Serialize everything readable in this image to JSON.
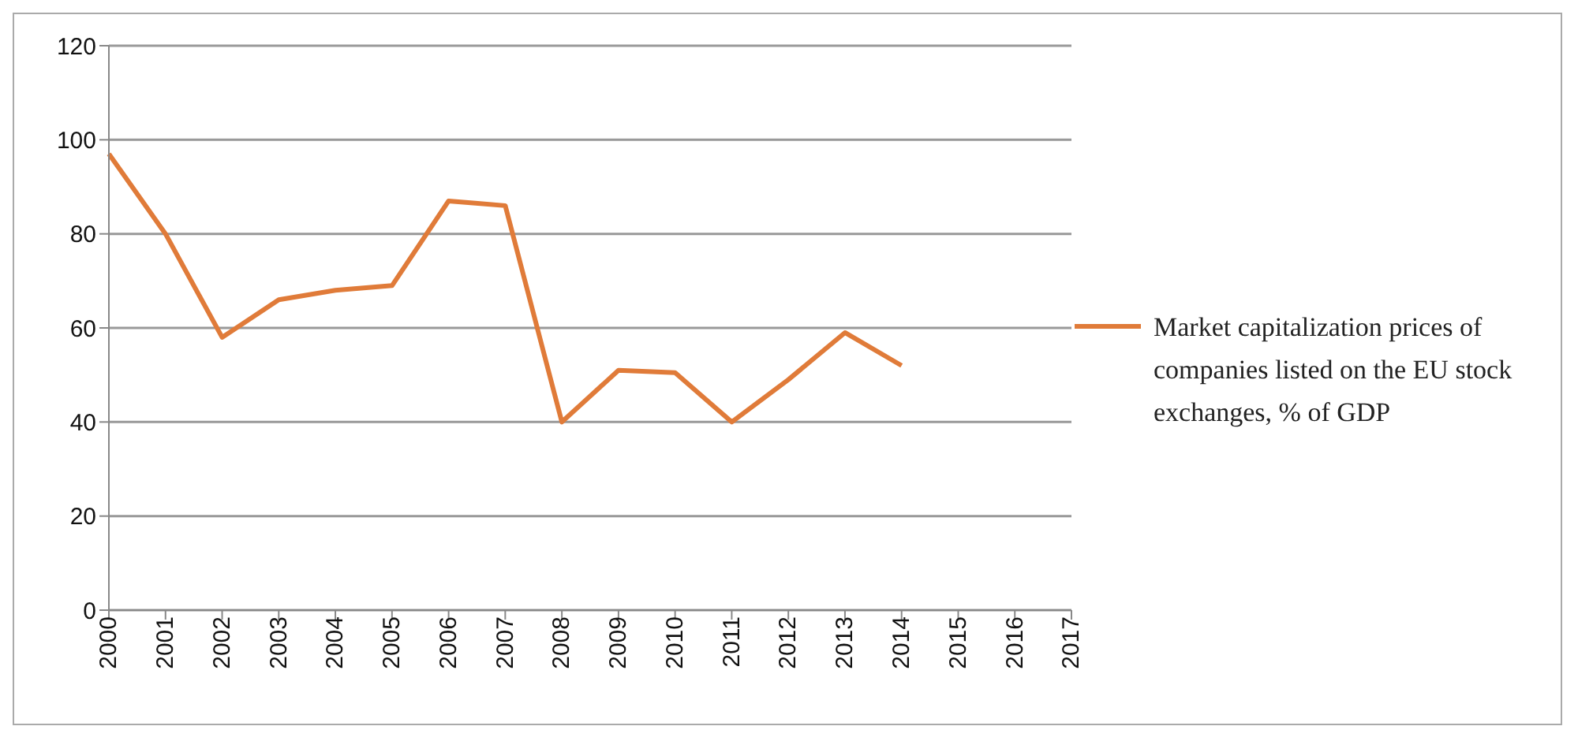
{
  "chart_data": {
    "type": "line",
    "categories": [
      "2000",
      "2001",
      "2002",
      "2003",
      "2004",
      "2005",
      "2006",
      "2007",
      "2008",
      "2009",
      "2010",
      "2011",
      "2012",
      "2013",
      "2014",
      "2015",
      "2016",
      "2017"
    ],
    "series": [
      {
        "name": "Market capitalization prices of companies listed on the EU stock exchanges, % of GDP",
        "color": "#e07b39",
        "values": [
          97,
          80,
          58,
          66,
          68,
          69,
          87,
          86,
          40,
          51,
          50.5,
          40,
          49,
          59,
          52,
          null,
          null,
          null
        ]
      }
    ],
    "ylim": [
      0,
      120
    ],
    "yticks": [
      0,
      20,
      40,
      60,
      80,
      100,
      120
    ],
    "grid": "y",
    "legend": "right",
    "marker": "none",
    "line_style": "solid"
  }
}
